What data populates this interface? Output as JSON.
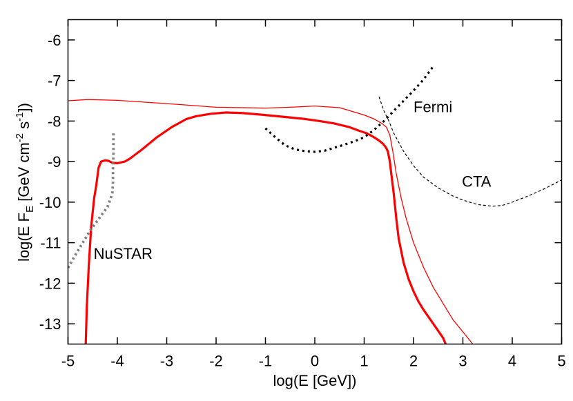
{
  "chart_data": {
    "type": "line",
    "xlabel": "log(E [GeV])",
    "ylabel": {
      "prefix": "log(E F",
      "sub": "E",
      "mid": " [GeV cm",
      "sup1": "-2",
      "mid2": " s",
      "sup2": "-1",
      "suffix": "])"
    },
    "xlim": [
      -5,
      5
    ],
    "ylim": [
      -13.5,
      -5.5
    ],
    "xticks": [
      -5,
      -4,
      -3,
      -2,
      -1,
      0,
      1,
      2,
      3,
      4,
      5
    ],
    "yticks": [
      -13,
      -12,
      -11,
      -10,
      -9,
      -8,
      -7,
      -6
    ],
    "grid": false,
    "series": [
      {
        "color": "#ff0000",
        "width": 3.2,
        "dash": "none",
        "x": [
          -4.64,
          -4.62,
          -4.58,
          -4.53,
          -4.47,
          -4.43,
          -4.38,
          -4.33,
          -4.25,
          -4.18,
          -4.1,
          -4.0,
          -3.85,
          -3.75,
          -3.5,
          -3.2,
          -2.9,
          -2.6,
          -2.4,
          -2.1,
          -1.8,
          -1.5,
          -1.1,
          -0.6,
          -0.2,
          0.1,
          0.4,
          0.7,
          0.9,
          1.05,
          1.2,
          1.3,
          1.38,
          1.44,
          1.48,
          1.52,
          1.55,
          1.6,
          1.65,
          1.7,
          1.8,
          1.9,
          2.0,
          2.1,
          2.2,
          2.4,
          2.6,
          2.65
        ],
        "y": [
          -13.5,
          -12.6,
          -11.6,
          -10.6,
          -9.9,
          -9.6,
          -9.15,
          -9.0,
          -8.97,
          -8.98,
          -9.03,
          -9.04,
          -9.0,
          -8.93,
          -8.7,
          -8.4,
          -8.15,
          -7.95,
          -7.88,
          -7.82,
          -7.79,
          -7.8,
          -7.84,
          -7.9,
          -7.95,
          -8.0,
          -8.06,
          -8.15,
          -8.24,
          -8.3,
          -8.4,
          -8.48,
          -8.56,
          -8.65,
          -8.75,
          -9.0,
          -9.3,
          -9.8,
          -10.4,
          -10.9,
          -11.5,
          -11.9,
          -12.2,
          -12.45,
          -12.65,
          -13.0,
          -13.35,
          -13.5
        ],
        "series_name": ""
      },
      {
        "color": "#ff0000",
        "width": 1.3,
        "dash": "none",
        "x": [
          -5.0,
          -4.6,
          -4.0,
          -3.0,
          -2.0,
          -1.0,
          -0.5,
          0.0,
          0.5,
          1.0,
          1.2,
          1.35,
          1.45,
          1.52,
          1.58,
          1.65,
          1.75,
          1.85,
          2.0,
          2.2,
          2.4,
          2.6,
          2.8,
          3.0,
          3.2
        ],
        "y": [
          -7.5,
          -7.47,
          -7.49,
          -7.57,
          -7.66,
          -7.68,
          -7.66,
          -7.63,
          -7.67,
          -7.85,
          -7.95,
          -8.05,
          -8.15,
          -8.35,
          -8.75,
          -9.3,
          -9.9,
          -10.4,
          -11.0,
          -11.6,
          -12.1,
          -12.5,
          -12.9,
          -13.2,
          -13.5
        ],
        "series_name": ""
      },
      {
        "color": "#000000",
        "width": 3.2,
        "dash": "3,5",
        "x": [
          -1.0,
          -0.8,
          -0.6,
          -0.4,
          -0.2,
          0.0,
          0.2,
          0.5,
          0.8,
          1.0,
          1.2,
          1.4,
          1.6,
          1.8,
          2.0,
          2.2,
          2.4
        ],
        "y": [
          -8.18,
          -8.4,
          -8.6,
          -8.7,
          -8.74,
          -8.76,
          -8.73,
          -8.62,
          -8.5,
          -8.4,
          -8.22,
          -8.0,
          -7.75,
          -7.5,
          -7.25,
          -6.98,
          -6.65
        ],
        "series_name": ""
      },
      {
        "color": "#000000",
        "width": 1.2,
        "dash": "4,3",
        "x": [
          1.3,
          1.4,
          1.5,
          1.6,
          1.8,
          2.0,
          2.2,
          2.5,
          2.8,
          3.0,
          3.3,
          3.6,
          3.8,
          4.0,
          4.3,
          4.6,
          4.8,
          5.0
        ],
        "y": [
          -7.4,
          -7.75,
          -8.0,
          -8.3,
          -8.75,
          -9.1,
          -9.38,
          -9.65,
          -9.85,
          -9.95,
          -10.06,
          -10.1,
          -10.08,
          -10.0,
          -9.86,
          -9.7,
          -9.58,
          -9.45
        ],
        "series_name": ""
      },
      {
        "color": "#808080",
        "width": 3.8,
        "dash": "3,4",
        "x": [
          -5.0,
          -4.85,
          -4.7,
          -4.55,
          -4.4,
          -4.3,
          -4.2,
          -4.15,
          -4.12,
          -4.1,
          -4.09,
          -4.09,
          -4.08,
          -4.08
        ],
        "y": [
          -11.62,
          -11.3,
          -11.0,
          -10.7,
          -10.45,
          -10.28,
          -10.12,
          -9.95,
          -9.85,
          -9.75,
          -9.5,
          -9.2,
          -8.8,
          -8.3
        ],
        "series_name": ""
      }
    ],
    "annotations": [
      {
        "text": "Fermi",
        "x": 2.0,
        "y": -7.78
      },
      {
        "text": "CTA",
        "x": 2.98,
        "y": -9.62
      },
      {
        "text": "NuSTAR",
        "x": -4.48,
        "y": -11.4
      }
    ]
  }
}
